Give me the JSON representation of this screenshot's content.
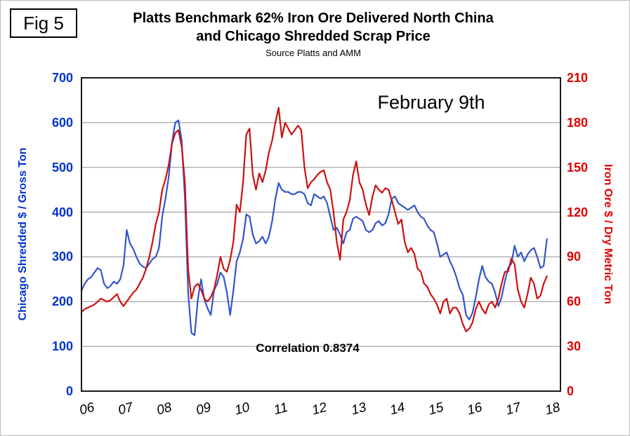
{
  "figure_label": "Fig 5",
  "title_line1": "Platts Benchmark 62% Iron Ore Delivered North China",
  "title_line2": "and Chicago Shredded Scrap Price",
  "subtitle": "Source Platts and AMM",
  "annotations": {
    "date_note": "February 9th",
    "correlation_note": "Correlation 0.8374"
  },
  "colors": {
    "scrap_blue_text": "#0033CC",
    "scrap_blue_line": "#3355CC",
    "ore_red_text": "#E00000",
    "ore_red_line": "#CC1111",
    "gridline": "#909090",
    "plot_border": "#000000"
  },
  "chart_data": {
    "type": "line",
    "title": "Platts Benchmark 62% Iron Ore Delivered North China and Chicago Shredded Scrap Price",
    "subtitle": "Source Platts and AMM",
    "x_start": "2006-01",
    "x_end": "2018-01",
    "points_per_year": 12,
    "x_tick_labels": [
      "06",
      "07",
      "08",
      "09",
      "10",
      "11",
      "12",
      "13",
      "14",
      "15",
      "16",
      "17",
      "18"
    ],
    "grid": true,
    "legend": "none",
    "left_axis": {
      "label": "Chicago Shredded $ / Gross Ton",
      "min": 0,
      "max": 700,
      "step": 100,
      "ticks": [
        0,
        100,
        200,
        300,
        400,
        500,
        600,
        700
      ]
    },
    "right_axis": {
      "label": "Iron Ore $ / Dry Metric Ton",
      "min": 0,
      "max": 210,
      "step": 30,
      "ticks": [
        0,
        30,
        60,
        90,
        120,
        150,
        180,
        210
      ]
    },
    "series": [
      {
        "name": "Chicago Shredded $ / Gross Ton",
        "axis": "left",
        "color": "#3355CC",
        "values": [
          225,
          240,
          250,
          255,
          265,
          275,
          270,
          240,
          230,
          235,
          245,
          240,
          250,
          280,
          360,
          330,
          318,
          300,
          285,
          278,
          275,
          285,
          295,
          300,
          320,
          390,
          430,
          480,
          555,
          600,
          605,
          560,
          430,
          220,
          130,
          125,
          205,
          250,
          205,
          185,
          170,
          225,
          240,
          265,
          255,
          220,
          170,
          225,
          290,
          310,
          340,
          395,
          390,
          350,
          330,
          335,
          345,
          330,
          345,
          380,
          430,
          465,
          450,
          445,
          445,
          440,
          440,
          445,
          445,
          440,
          420,
          415,
          440,
          435,
          430,
          435,
          420,
          390,
          360,
          365,
          350,
          330,
          355,
          360,
          385,
          390,
          385,
          380,
          360,
          355,
          360,
          375,
          380,
          370,
          375,
          395,
          430,
          435,
          420,
          415,
          410,
          405,
          410,
          415,
          400,
          390,
          385,
          370,
          360,
          355,
          330,
          300,
          305,
          310,
          290,
          275,
          255,
          230,
          215,
          170,
          160,
          175,
          210,
          250,
          280,
          255,
          245,
          240,
          220,
          190,
          210,
          245,
          275,
          285,
          325,
          300,
          310,
          290,
          305,
          315,
          320,
          300,
          275,
          280,
          340
        ]
      },
      {
        "name": "Iron Ore $ / Dry Metric Ton",
        "axis": "right",
        "color": "#CC1111",
        "values": [
          53,
          55,
          56,
          57,
          58,
          60,
          62,
          61,
          60,
          61,
          63,
          65,
          60,
          57,
          60,
          63,
          66,
          68,
          72,
          76,
          82,
          90,
          100,
          112,
          120,
          135,
          142,
          152,
          166,
          173,
          175,
          164,
          140,
          82,
          62,
          70,
          72,
          68,
          62,
          60,
          63,
          68,
          78,
          90,
          82,
          80,
          88,
          100,
          125,
          120,
          140,
          172,
          176,
          145,
          135,
          146,
          140,
          148,
          160,
          168,
          180,
          190,
          170,
          180,
          176,
          172,
          175,
          178,
          175,
          150,
          136,
          140,
          142,
          145,
          147,
          148,
          140,
          135,
          120,
          100,
          88,
          115,
          120,
          128,
          145,
          154,
          140,
          135,
          125,
          118,
          130,
          138,
          135,
          133,
          136,
          135,
          128,
          120,
          112,
          115,
          100,
          93,
          96,
          92,
          82,
          80,
          72,
          70,
          65,
          62,
          58,
          52,
          60,
          62,
          52,
          56,
          56,
          52,
          45,
          40,
          42,
          46,
          55,
          60,
          55,
          52,
          58,
          60,
          56,
          62,
          72,
          80,
          80,
          89,
          85,
          68,
          60,
          56,
          65,
          76,
          72,
          62,
          64,
          72,
          77
        ]
      }
    ]
  }
}
